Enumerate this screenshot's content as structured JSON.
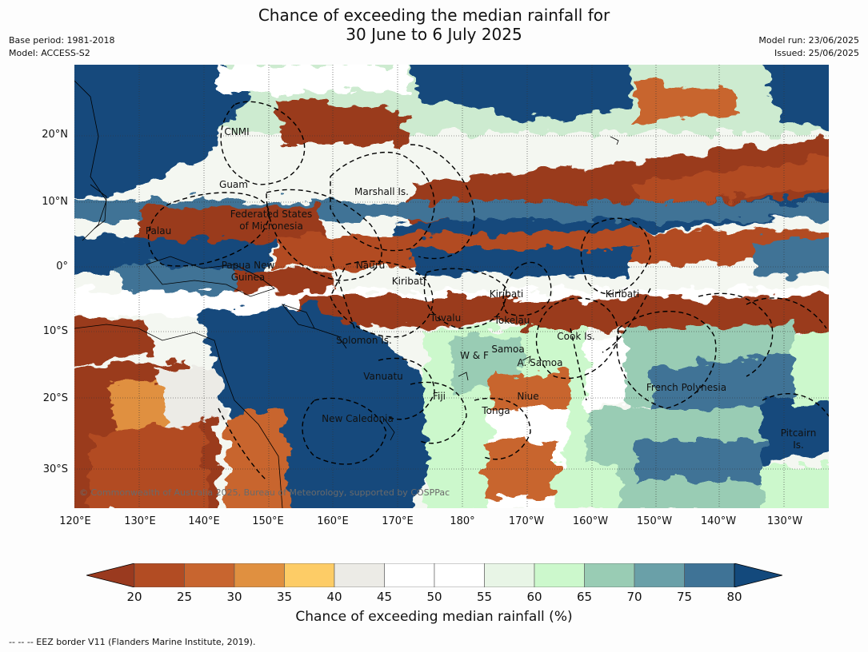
{
  "title_line1": "Chance of exceeding the median rainfall for",
  "title_line2": "30 June to 6 July 2025",
  "base_period": "Base period: 1981-2018",
  "model": "Model: ACCESS-S2",
  "model_run": "Model run: 23/06/2025",
  "issued": "Issued: 25/06/2025",
  "lat_labels": [
    "20°N",
    "10°N",
    "0°",
    "10°S",
    "20°S",
    "30°S"
  ],
  "lon_labels": [
    "120°E",
    "130°E",
    "140°E",
    "150°E",
    "160°E",
    "170°E",
    "180°",
    "170°W",
    "160°W",
    "150°W",
    "140°W",
    "130°W"
  ],
  "regions": [
    "CNMI",
    "Guam",
    "Marshall Is.",
    "Federated States",
    "of Micronesia",
    "Palau",
    "Papua New",
    "Guinea",
    "Nauru",
    "Kiribati",
    "Kiribati",
    "Kiribati",
    "Tuvalu",
    "Tokelau",
    "Cook Is.",
    "Solomon Is.",
    "W & F",
    "Samoa",
    "A. Samoa",
    "Vanuatu",
    "Fiji",
    "Niue",
    "French Polynesia",
    "Tonga",
    "New Caledonia",
    "Pitcairn",
    "Is."
  ],
  "copyright": "© Commonwealth of Australia 2025, Bureau of Meteorology, supported by COSPPac",
  "colorbar": {
    "ticks": [
      "20",
      "25",
      "30",
      "35",
      "40",
      "45",
      "50",
      "55",
      "60",
      "65",
      "70",
      "75",
      "80"
    ],
    "colors": [
      "#9a3a1f",
      "#b24c23",
      "#c8652f",
      "#e09040",
      "#fdcc66",
      "#ecebe6",
      "#ffffff",
      "#ffffff",
      "#e8f5e6",
      "#ccf8cc",
      "#99ccb4",
      "#6aa0a8",
      "#3f7396",
      "#13497c"
    ],
    "label": "Chance of exceeding median rainfall (%)"
  },
  "footer": "--  --  -- EEZ border V11 (Flanders Marine Institute, 2019)."
}
